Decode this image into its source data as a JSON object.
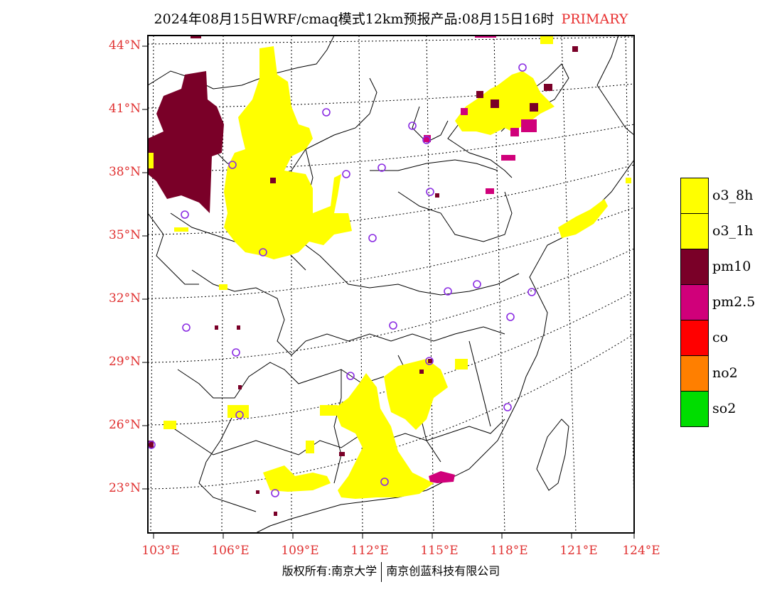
{
  "title": {
    "main": "2024年08月15日WRF/cmaq模式12km预报产品:08月15日16时",
    "tag": "PRIMARY",
    "tag_color": "#e83030"
  },
  "axes": {
    "lat_labels": [
      "44°N",
      "41°N",
      "38°N",
      "35°N",
      "32°N",
      "29°N",
      "26°N",
      "23°N"
    ],
    "lon_labels": [
      "103°E",
      "106°E",
      "109°E",
      "112°E",
      "115°E",
      "118°E",
      "121°E",
      "124°E"
    ],
    "label_color": "#e03030"
  },
  "legend": [
    {
      "label": "o3_8h",
      "color": "#ffff00"
    },
    {
      "label": "o3_1h",
      "color": "#ffff00"
    },
    {
      "label": "pm10",
      "color": "#7a0028"
    },
    {
      "label": "pm2.5",
      "color": "#d0007a"
    },
    {
      "label": "co",
      "color": "#ff0000"
    },
    {
      "label": "no2",
      "color": "#ff7f00"
    },
    {
      "label": "so2",
      "color": "#00dd00"
    }
  ],
  "footer": {
    "left": "版权所有:南京大学",
    "right": "南京创蓝科技有限公司"
  },
  "colors": {
    "o3": "#ffff00",
    "pm10": "#7a0028",
    "pm25": "#d0007a",
    "station": "#8a2be2",
    "border": "#000000"
  }
}
